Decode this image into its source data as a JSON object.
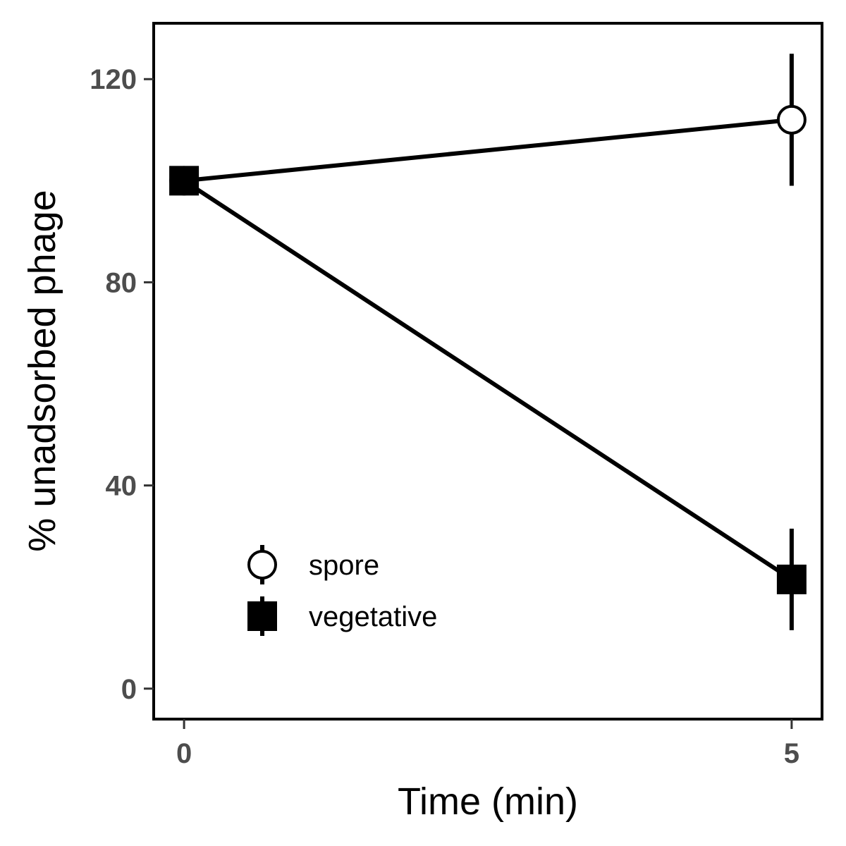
{
  "chart_data": {
    "type": "line",
    "title": "",
    "xlabel": "Time (min)",
    "ylabel": "% unadsorbed phage",
    "x": [
      0,
      5
    ],
    "x_ticks": [
      0,
      5
    ],
    "y_ticks": [
      0,
      40,
      80,
      120
    ],
    "xlim": [
      -0.25,
      5.25
    ],
    "ylim": [
      -6,
      131
    ],
    "grid": false,
    "legend_position": "bottom-left",
    "series": [
      {
        "name": "spore",
        "marker": "open-circle",
        "color": "#000000",
        "fill": "#ffffff",
        "values": [
          100,
          112
        ],
        "error_low": [
          100,
          99
        ],
        "error_high": [
          100,
          125
        ]
      },
      {
        "name": "vegetative",
        "marker": "filled-square",
        "color": "#000000",
        "fill": "#000000",
        "values": [
          100,
          21.5
        ],
        "error_low": [
          100,
          11.5
        ],
        "error_high": [
          100,
          31.5
        ]
      }
    ]
  }
}
